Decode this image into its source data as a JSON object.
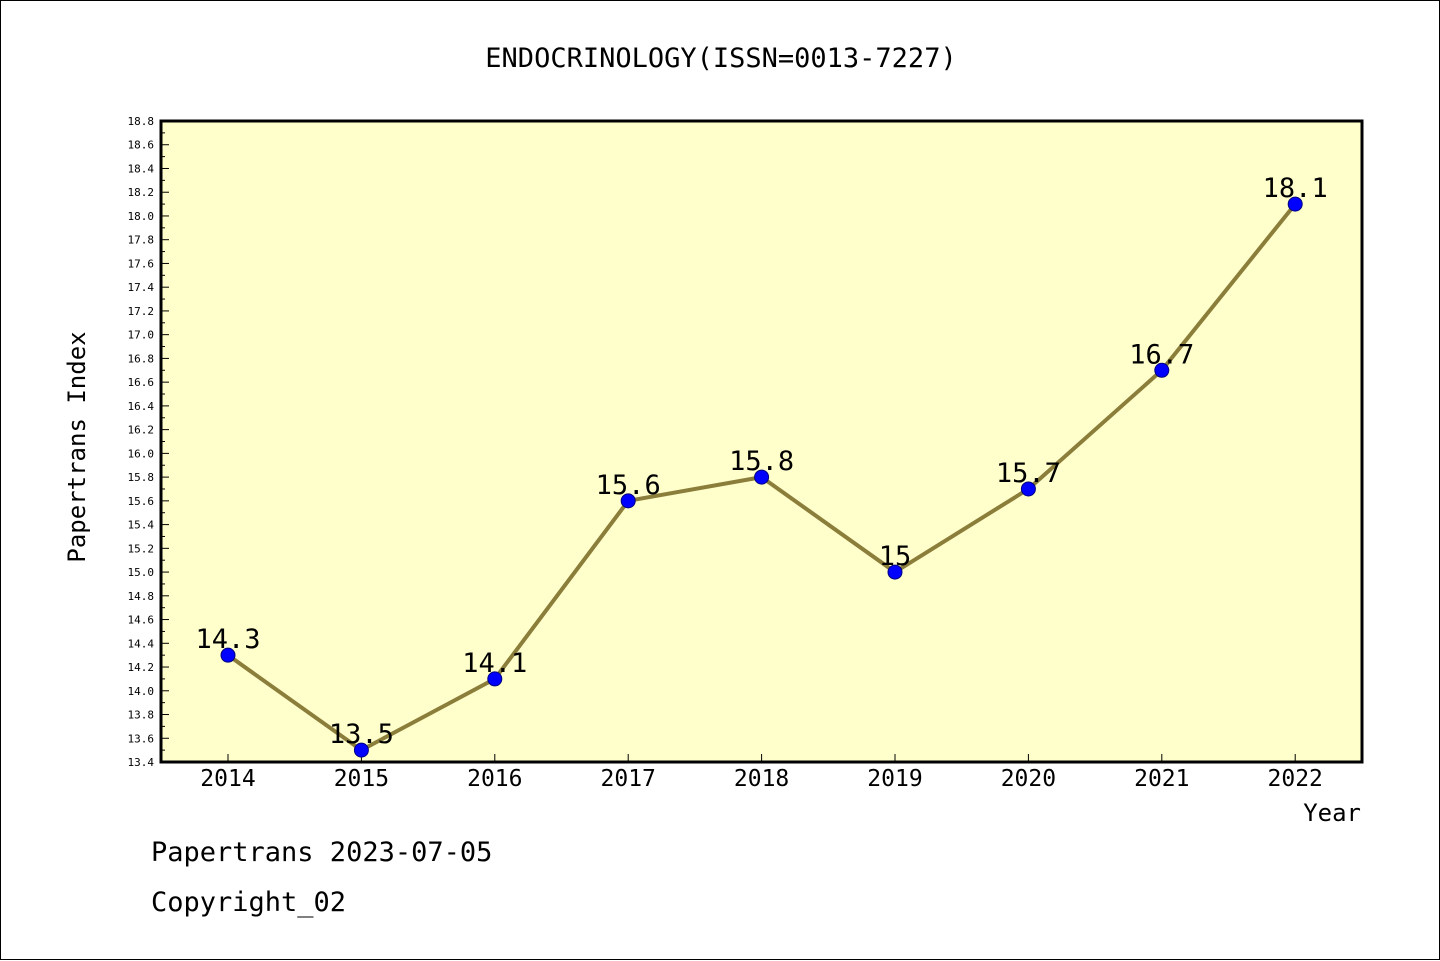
{
  "chart_data": {
    "type": "line",
    "title": "ENDOCRINOLOGY(ISSN=0013-7227)",
    "xlabel": "Year",
    "ylabel": "Papertrans Index",
    "categories": [
      "2014",
      "2015",
      "2016",
      "2017",
      "2018",
      "2019",
      "2020",
      "2021",
      "2022"
    ],
    "series": [
      {
        "values": [
          14.3,
          13.5,
          14.1,
          15.6,
          15.8,
          15.0,
          15.7,
          16.7,
          18.1
        ],
        "data_labels": [
          "14.3",
          "13.5",
          "14.1",
          "15.6",
          "15.8",
          "15",
          "15.7",
          "16.7",
          "18.1"
        ]
      }
    ],
    "ylim": [
      13.4,
      18.8
    ],
    "ytick_labels": [
      "13.4",
      "13.6",
      "13.8",
      "14.0",
      "14.2",
      "14.4",
      "14.6",
      "14.8",
      "15.0",
      "15.2",
      "15.4",
      "15.6",
      "15.8",
      "16.0",
      "16.2",
      "16.4",
      "16.6",
      "16.8",
      "17.0",
      "17.2",
      "17.4",
      "17.6",
      "17.8",
      "18.0",
      "18.2",
      "18.4",
      "18.6",
      "18.8"
    ],
    "grid": false,
    "legend": "none"
  },
  "footer": {
    "line1": "Papertrans 2023-07-05",
    "line2": "Copyright_02"
  },
  "colors": {
    "plot_background": "#ffffcc",
    "line": "#8b7d3a",
    "marker_fill": "#0000ff",
    "marker_stroke": "#000080",
    "axis": "#000000",
    "text": "#000000"
  }
}
